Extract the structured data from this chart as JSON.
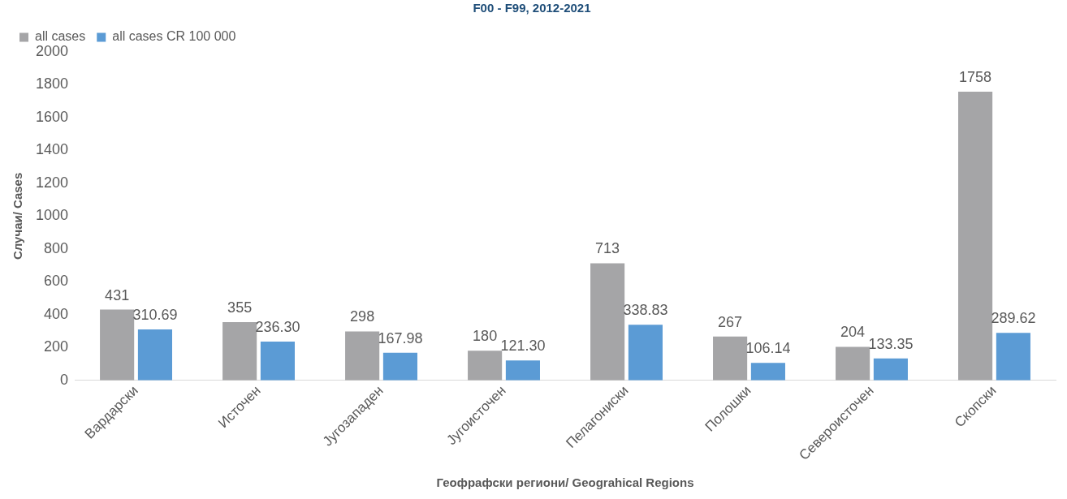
{
  "chart_data": {
    "type": "bar",
    "title": "F00 - F99, 2012-2021",
    "xlabel": "Геофрафски региони/ Geograhical Regions",
    "ylabel": "Случаи/ Cases",
    "categories": [
      "Вардарски",
      "Источен",
      "Југозападен",
      "Југоисточен",
      "Пелагониски",
      "Полошки",
      "Североисточен",
      "Скопски"
    ],
    "series": [
      {
        "name": "all cases",
        "color": "#a5a5a7",
        "values": [
          431,
          355,
          298,
          180,
          713,
          267,
          204,
          1758
        ],
        "value_labels": [
          "431",
          "355",
          "298",
          "180",
          "713",
          "267",
          "204",
          "1758"
        ]
      },
      {
        "name": "all cases CR 100 000",
        "color": "#5b9bd5",
        "values": [
          310.69,
          236.3,
          167.98,
          121.3,
          338.83,
          106.14,
          133.35,
          289.62
        ],
        "value_labels": [
          "310.69",
          "236.30",
          "167.98",
          "121.30",
          "338.83",
          "106.14",
          "133.35",
          "289.62"
        ]
      }
    ],
    "ylim": [
      0,
      2000
    ],
    "yticks": [
      0,
      200,
      400,
      600,
      800,
      1000,
      1200,
      1400,
      1600,
      1800,
      2000
    ],
    "grid": false,
    "legend": "top left"
  }
}
